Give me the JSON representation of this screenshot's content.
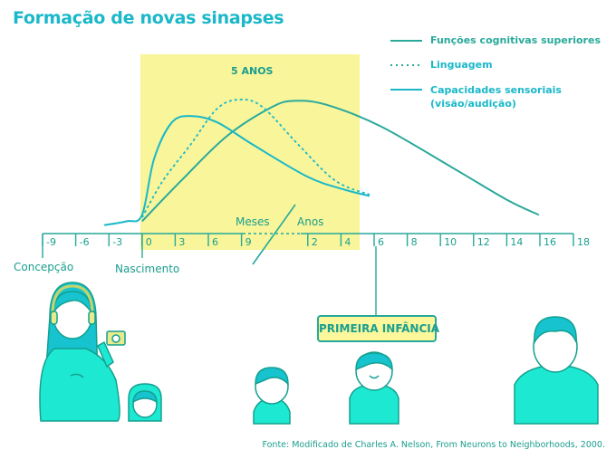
{
  "title": "Formação de novas sinapses",
  "highlight_label": "5 ANOS",
  "axis_labels": {
    "months": "Meses",
    "years": "Anos"
  },
  "markers": {
    "conception": "Concepção",
    "birth": "Nascimento"
  },
  "badge": "PRIMEIRA INFÂNCIA",
  "source": "Fonte: Modificado de Charles A. Nelson, From Neurons to Neighborhoods, 2000.",
  "colors": {
    "cognitive": "#2aa99b",
    "language": "#1ab8c9",
    "sensory": "#1ab8c9",
    "highlight": "#f8f59a",
    "axis": "#26a99a",
    "figure_fill": "#1de9d3"
  },
  "chart_data": {
    "type": "line",
    "title": "Formação de novas sinapses",
    "xlabel": "Meses / Anos",
    "ylabel": "",
    "x_ticks": [
      "-9",
      "-6",
      "-3",
      "0",
      "3",
      "6",
      "9",
      "",
      "2",
      "4",
      "6",
      "8",
      "10",
      "12",
      "14",
      "16",
      "18"
    ],
    "x_ticks_shown": [
      "-9",
      "-6",
      "-3",
      "0",
      "3",
      "6",
      "9",
      "2",
      "4",
      "6",
      "8",
      "10",
      "12",
      "14",
      "16",
      "18"
    ],
    "ylim": [
      0,
      100
    ],
    "highlight_range": [
      3,
      9.6
    ],
    "legend_position": "top-right",
    "legend": [
      "Funções cognitivas superiores",
      "Linguagem",
      "Capacidades sensoriais (visão/audição)"
    ],
    "series": [
      {
        "name": "Funções cognitivas superiores",
        "style": "solid",
        "points": [
          [
            3.0,
            4
          ],
          [
            4.18,
            36
          ],
          [
            5.55,
            71
          ],
          [
            6.91,
            94
          ],
          [
            7.6,
            99
          ],
          [
            8.55,
            96
          ],
          [
            10.19,
            79
          ],
          [
            12.38,
            46
          ],
          [
            14.0,
            21
          ],
          [
            14.97,
            9
          ]
        ]
      },
      {
        "name": "Linguagem",
        "style": "dotted",
        "points": [
          [
            3.0,
            7
          ],
          [
            3.63,
            36
          ],
          [
            4.45,
            64
          ],
          [
            5.27,
            93
          ],
          [
            5.96,
            100
          ],
          [
            6.64,
            94
          ],
          [
            7.73,
            64
          ],
          [
            8.83,
            36
          ],
          [
            9.86,
            25
          ]
        ]
      },
      {
        "name": "Capacidades sensoriais (visão/audição)",
        "style": "solid",
        "points": [
          [
            1.86,
            1
          ],
          [
            2.54,
            4
          ],
          [
            3.0,
            9
          ],
          [
            3.36,
            53
          ],
          [
            3.9,
            82
          ],
          [
            4.5,
            87
          ],
          [
            5.27,
            82
          ],
          [
            6.37,
            64
          ],
          [
            8.0,
            39
          ],
          [
            9.1,
            29
          ],
          [
            9.86,
            24
          ]
        ]
      }
    ]
  }
}
